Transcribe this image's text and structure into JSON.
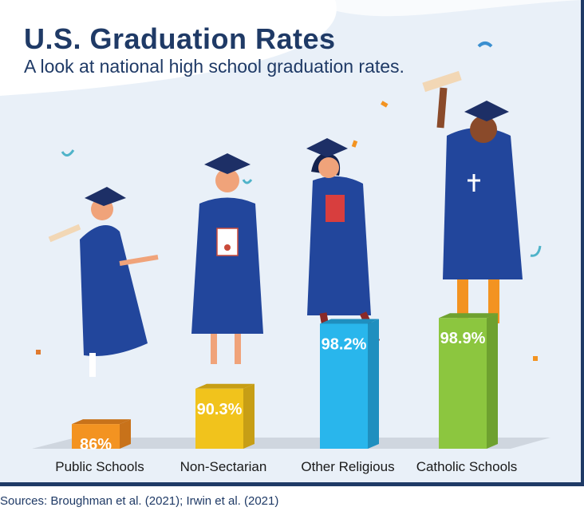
{
  "header": {
    "title": "U.S. Graduation Rates",
    "subtitle": "A look at national high school graduation rates."
  },
  "footer": {
    "source": "Sources: Broughman et al. (2021); Irwin et al. (2021)"
  },
  "chart_data": {
    "type": "bar",
    "title": "U.S. Graduation Rates",
    "subtitle": "A look at national high school graduation rates.",
    "categories": [
      "Public Schools",
      "Non-Sectarian",
      "Other Religious",
      "Catholic Schools"
    ],
    "values": [
      86,
      90.3,
      98.2,
      98.9
    ],
    "value_labels": [
      "86%",
      "90.3%",
      "98.2%",
      "98.9%"
    ],
    "unit": "%",
    "colors": [
      "#f39321",
      "#f1c31c",
      "#29b6ec",
      "#8cc63f"
    ],
    "side_colors": [
      "#c8721a",
      "#c79e15",
      "#1f8fbf",
      "#6ea12f"
    ],
    "icons": [
      "graduate-figure"
    ]
  }
}
